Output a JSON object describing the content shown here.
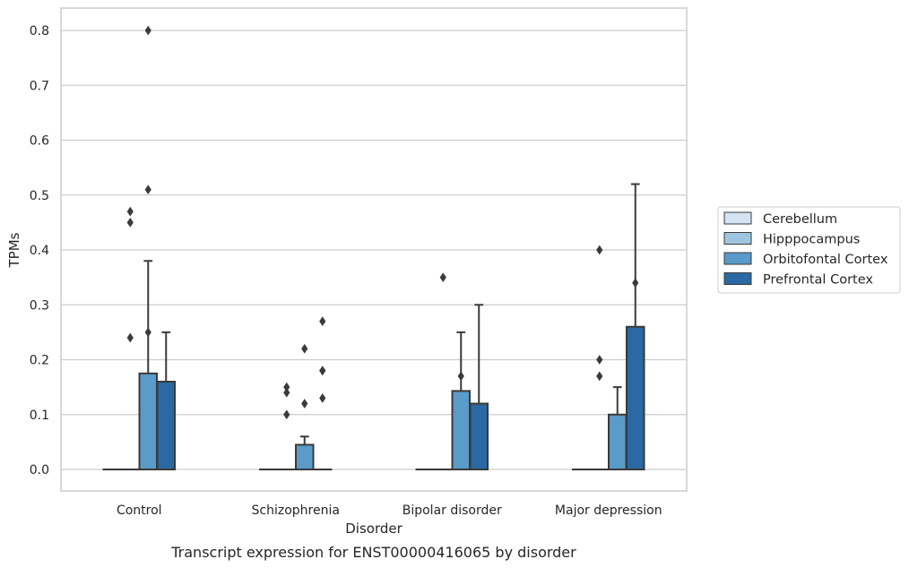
{
  "caption": "Transcript expression for ENST00000416065 by disorder",
  "chart_data": {
    "type": "box",
    "xlabel": "Disorder",
    "ylabel": "TPMs",
    "ylim": [
      -0.04,
      0.84
    ],
    "yticks": [
      0.0,
      0.1,
      0.2,
      0.3,
      0.4,
      0.5,
      0.6,
      0.7,
      0.8
    ],
    "ytick_labels": [
      "0.0",
      "0.1",
      "0.2",
      "0.3",
      "0.4",
      "0.5",
      "0.6",
      "0.7",
      "0.8"
    ],
    "grid": true,
    "legend_position": "right",
    "categories": [
      "Control",
      "Schizophrenia",
      "Bipolar disorder",
      "Major depression"
    ],
    "series": [
      {
        "name": "Cerebellum",
        "color": "#d3e3f2",
        "boxes": [
          {
            "q1": 0,
            "median": 0,
            "q3": 0,
            "whisker_low": 0,
            "whisker_high": 0,
            "outliers": []
          },
          {
            "q1": 0,
            "median": 0,
            "q3": 0,
            "whisker_low": 0,
            "whisker_high": 0,
            "outliers": []
          },
          {
            "q1": 0,
            "median": 0,
            "q3": 0,
            "whisker_low": 0,
            "whisker_high": 0,
            "outliers": []
          },
          {
            "q1": 0,
            "median": 0,
            "q3": 0,
            "whisker_low": 0,
            "whisker_high": 0,
            "outliers": []
          }
        ]
      },
      {
        "name": "Hipppocampus",
        "color": "#9fc6e0",
        "boxes": [
          {
            "q1": 0,
            "median": 0,
            "q3": 0,
            "whisker_low": 0,
            "whisker_high": 0,
            "outliers": [
              0.47,
              0.45,
              0.24
            ]
          },
          {
            "q1": 0,
            "median": 0,
            "q3": 0,
            "whisker_low": 0,
            "whisker_high": 0,
            "outliers": [
              0.15,
              0.14,
              0.1
            ]
          },
          {
            "q1": 0,
            "median": 0,
            "q3": 0,
            "whisker_low": 0,
            "whisker_high": 0,
            "outliers": [
              0.35
            ]
          },
          {
            "q1": 0,
            "median": 0,
            "q3": 0,
            "whisker_low": 0,
            "whisker_high": 0,
            "outliers": [
              0.4,
              0.2,
              0.17
            ]
          }
        ]
      },
      {
        "name": "Orbitofontal Cortex",
        "color": "#5a9bc9",
        "boxes": [
          {
            "q1": 0,
            "median": 0,
            "q3": 0.175,
            "whisker_low": 0,
            "whisker_high": 0.38,
            "outliers": [
              0.8,
              0.51,
              0.25
            ]
          },
          {
            "q1": 0,
            "median": 0,
            "q3": 0.045,
            "whisker_low": 0,
            "whisker_high": 0.06,
            "outliers": [
              0.22,
              0.12
            ]
          },
          {
            "q1": 0,
            "median": 0,
            "q3": 0.143,
            "whisker_low": 0,
            "whisker_high": 0.25,
            "outliers": [
              0.17
            ]
          },
          {
            "q1": 0,
            "median": 0,
            "q3": 0.1,
            "whisker_low": 0,
            "whisker_high": 0.15,
            "outliers": []
          }
        ]
      },
      {
        "name": "Prefrontal Cortex",
        "color": "#2a69a3",
        "boxes": [
          {
            "q1": 0,
            "median": 0,
            "q3": 0.16,
            "whisker_low": 0,
            "whisker_high": 0.25,
            "outliers": []
          },
          {
            "q1": 0,
            "median": 0,
            "q3": 0,
            "whisker_low": 0,
            "whisker_high": 0,
            "outliers": [
              0.27,
              0.18,
              0.18,
              0.13
            ]
          },
          {
            "q1": 0,
            "median": 0,
            "q3": 0.12,
            "whisker_low": 0,
            "whisker_high": 0.3,
            "outliers": []
          },
          {
            "q1": 0,
            "median": 0,
            "q3": 0.26,
            "whisker_low": 0,
            "whisker_high": 0.52,
            "outliers": [
              0.34
            ]
          }
        ]
      }
    ]
  }
}
